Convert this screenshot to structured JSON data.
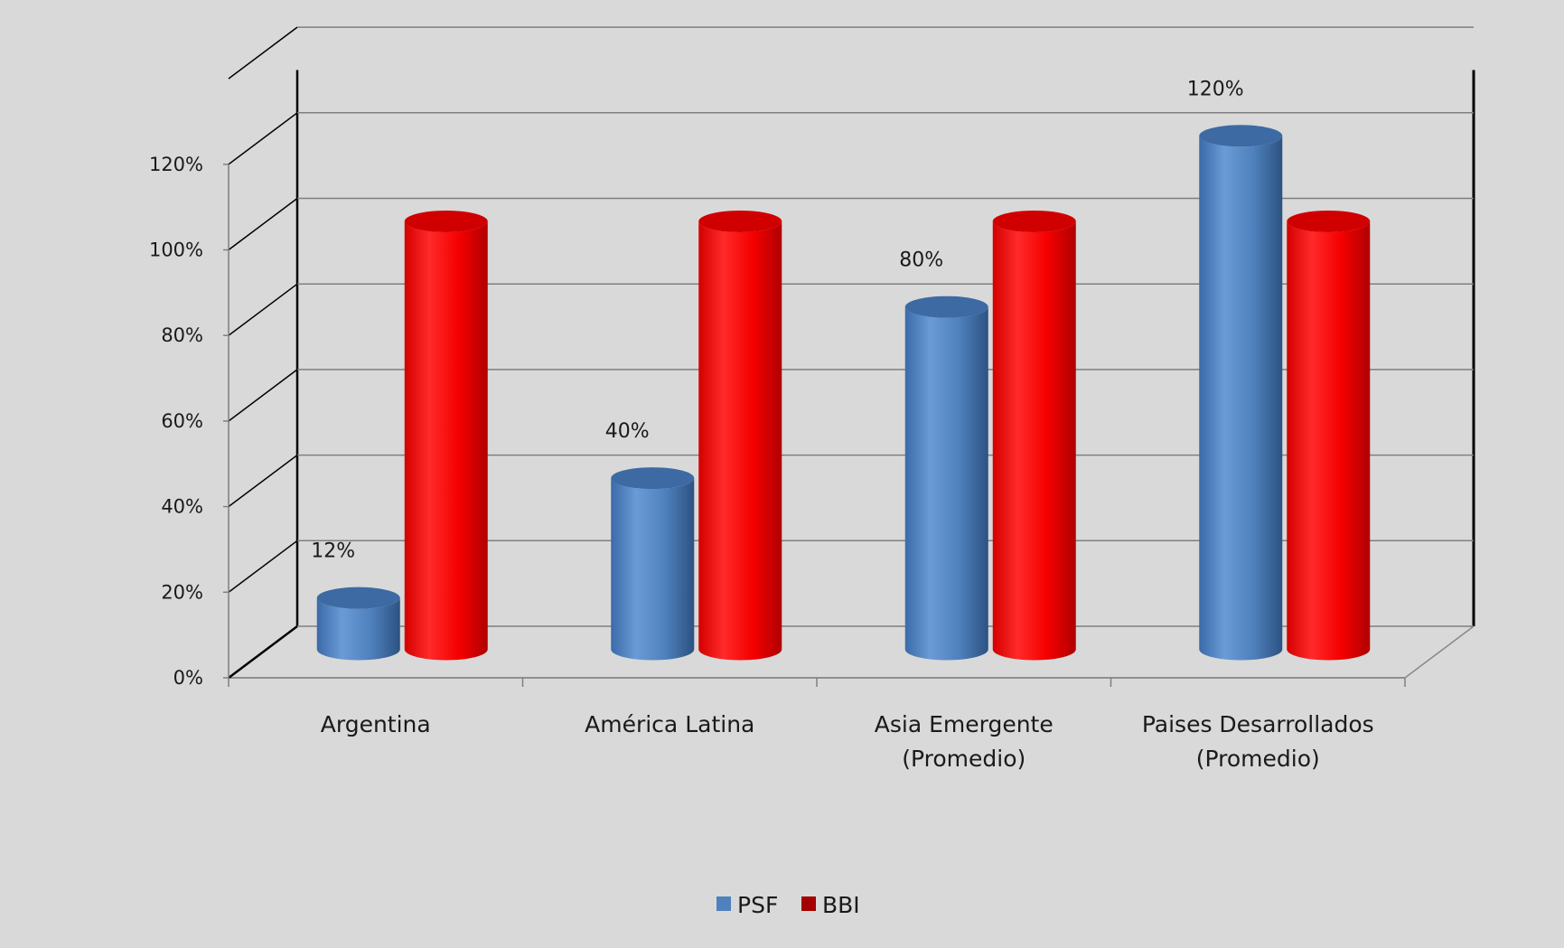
{
  "chart_data": {
    "type": "bar",
    "categories": [
      [
        "Argentina"
      ],
      [
        "América Latina"
      ],
      [
        "Asia Emergente",
        "(Promedio)"
      ],
      [
        "Paises Desarrollados",
        "(Promedio)"
      ]
    ],
    "series": [
      {
        "name": "PSF",
        "values": [
          12,
          40,
          80,
          120
        ],
        "color": "#4f81bd",
        "data_labels": [
          "12%",
          "40%",
          "80%",
          "120%"
        ]
      },
      {
        "name": "BBI",
        "values": [
          100,
          100,
          100,
          100
        ],
        "color": "#ff0000",
        "data_labels": null
      }
    ],
    "ylim": [
      0,
      120
    ],
    "yticks": [
      0,
      20,
      40,
      60,
      80,
      100,
      120
    ],
    "ytick_labels": [
      "0%",
      "20%",
      "40%",
      "60%",
      "80%",
      "100%",
      "120%"
    ],
    "grid": true,
    "style": "3d-cylinder",
    "legend_position": "bottom",
    "legend_swatch_colors": [
      "#4f81bd",
      "#a50000"
    ]
  }
}
